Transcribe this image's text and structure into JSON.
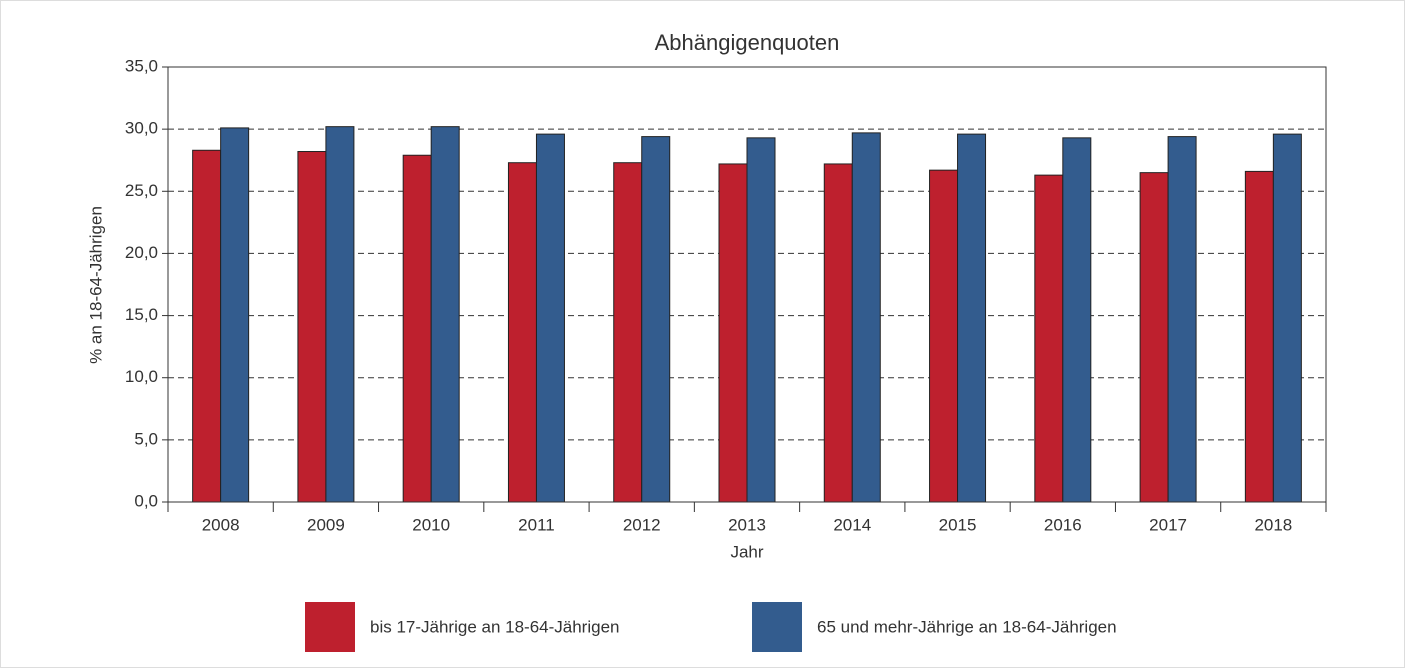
{
  "chart_data": {
    "type": "bar",
    "title": "Abhängigenquoten",
    "x_label": "Jahr",
    "y_label": "% an 18-64-Jährigen",
    "categories": [
      "2008",
      "2009",
      "2010",
      "2011",
      "2012",
      "2013",
      "2014",
      "2015",
      "2016",
      "2017",
      "2018"
    ],
    "series": [
      {
        "name": "bis 17-Jährige an 18-64-Jährigen",
        "color": "#be202e",
        "values": [
          28.3,
          28.2,
          27.9,
          27.3,
          27.3,
          27.2,
          27.2,
          26.7,
          26.3,
          26.5,
          26.6
        ]
      },
      {
        "name": "65 und mehr-Jährige an 18-64-Jährigen",
        "color": "#335c8e",
        "values": [
          30.1,
          30.2,
          30.2,
          29.6,
          29.4,
          29.3,
          29.7,
          29.6,
          29.3,
          29.4,
          29.6
        ]
      }
    ],
    "ylim": [
      0,
      35
    ],
    "yticks": [
      {
        "value": 0,
        "label": "0,0"
      },
      {
        "value": 5,
        "label": "5,0"
      },
      {
        "value": 10,
        "label": "10,0"
      },
      {
        "value": 15,
        "label": "15,0"
      },
      {
        "value": 20,
        "label": "20,0"
      },
      {
        "value": 25,
        "label": "25,0"
      },
      {
        "value": 30,
        "label": "30,0"
      },
      {
        "value": 35,
        "label": "35,0"
      }
    ],
    "grid": true
  }
}
